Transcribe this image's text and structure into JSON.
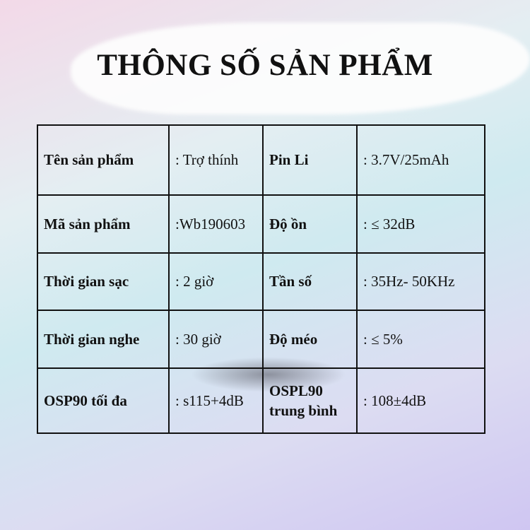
{
  "title": "THÔNG SỐ SẢN PHẨM",
  "rows": [
    {
      "k1": "Tên sản phẩm",
      "v1": ": Trợ thính",
      "k2": "Pin Li",
      "v2": ": 3.7V/25mAh"
    },
    {
      "k1": "Mã sản phẩm",
      "v1": ":Wb190603",
      "k2": "Độ ồn",
      "v2": ": ≤ 32dB"
    },
    {
      "k1": "Thời gian sạc",
      "v1": ": 2 giờ",
      "k2": "Tần số",
      "v2": ": 35Hz- 50KHz"
    },
    {
      "k1": "Thời gian nghe",
      "v1": ": 30 giờ",
      "k2": "Độ méo",
      "v2": ": ≤  5%"
    },
    {
      "k1": "OSP90 tối đa",
      "v1": ": s115+4dB",
      "k2": "OSPL90 trung bình",
      "v2": ": 108±4dB"
    }
  ]
}
